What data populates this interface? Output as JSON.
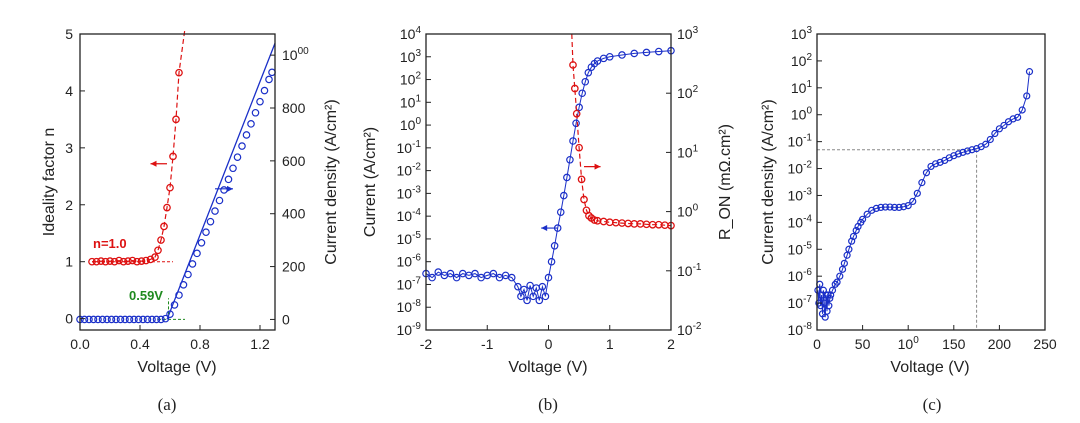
{
  "chart_data": [
    {
      "type": "scatter",
      "panel": "(a)",
      "xlabel": "Voltage (V)",
      "ylabel": "Ideality factor n",
      "y2label": "Current density (A/cm²)",
      "xlim": [
        0,
        1.3
      ],
      "ylim": [
        -0.2,
        5
      ],
      "y2lim": [
        -40,
        1080
      ],
      "xticks": [
        "0.0",
        "0.4",
        "0.8",
        "1.2"
      ],
      "yticks": [
        "0",
        "1",
        "2",
        "3",
        "4",
        "5"
      ],
      "y2ticks": [
        "0",
        "200",
        "400",
        "600",
        "800",
        "1000"
      ],
      "annotations": [
        "n=1.0",
        "0.59V"
      ],
      "colors": {
        "ideality": "#dd1111",
        "current": "#1a2fc8",
        "guide_red": "#dd1111",
        "guide_green": "#1f8a1f"
      },
      "series": [
        {
          "axis": "left",
          "color": "#dd1111",
          "x": [
            0.08,
            0.11,
            0.14,
            0.17,
            0.2,
            0.23,
            0.26,
            0.29,
            0.32,
            0.35,
            0.38,
            0.41,
            0.44,
            0.47,
            0.5,
            0.52,
            0.54,
            0.56,
            0.58,
            0.6,
            0.62,
            0.64,
            0.66
          ],
          "y": [
            1.0,
            1.0,
            1.01,
            1.0,
            1.01,
            1.0,
            1.02,
            1.0,
            1.01,
            1.02,
            1.0,
            1.01,
            1.02,
            1.04,
            1.08,
            1.2,
            1.38,
            1.62,
            1.95,
            2.3,
            2.85,
            3.5,
            4.32
          ]
        },
        {
          "axis": "right",
          "color": "#1a2fc8",
          "x": [
            0.0,
            0.03,
            0.06,
            0.09,
            0.12,
            0.15,
            0.18,
            0.21,
            0.24,
            0.27,
            0.3,
            0.33,
            0.36,
            0.39,
            0.42,
            0.45,
            0.48,
            0.51,
            0.54,
            0.57,
            0.6,
            0.63,
            0.66,
            0.69,
            0.72,
            0.75,
            0.78,
            0.81,
            0.84,
            0.87,
            0.9,
            0.93,
            0.96,
            0.99,
            1.02,
            1.05,
            1.08,
            1.11,
            1.14,
            1.17,
            1.2,
            1.23,
            1.26,
            1.28
          ],
          "y": [
            0,
            0,
            0,
            0,
            0,
            0,
            0,
            0,
            0,
            0,
            0,
            0,
            0,
            0,
            0,
            0,
            0,
            0,
            0,
            3,
            20,
            55,
            92,
            131,
            170,
            210,
            250,
            290,
            330,
            370,
            410,
            450,
            490,
            530,
            572,
            614,
            656,
            698,
            740,
            782,
            824,
            866,
            908,
            935
          ]
        }
      ]
    },
    {
      "type": "scatter",
      "panel": "(b)",
      "xlabel": "Voltage (V)",
      "ylabel": "Current (A/cm²)",
      "y2label": "R_ON (mΩ.cm²)",
      "yscale": "log",
      "y2scale": "log",
      "xlim": [
        -2,
        2
      ],
      "ylim": [
        1e-09,
        10000.0
      ],
      "y2lim": [
        0.01,
        1000
      ],
      "xticks": [
        "-2",
        "-1",
        "0",
        "1",
        "2"
      ],
      "yticks": [
        "10-9",
        "10-8",
        "10-7",
        "10-6",
        "10-5",
        "10-4",
        "10-3",
        "10-2",
        "10-1",
        "100",
        "101",
        "102",
        "103",
        "104"
      ],
      "y2ticks": [
        "10-2",
        "10-1",
        "100",
        "101",
        "102",
        "103"
      ],
      "colors": {
        "current": "#1a2fc8",
        "ron": "#dd1111"
      },
      "series": [
        {
          "axis": "left",
          "color": "#1a2fc8",
          "x": [
            -2.0,
            -1.9,
            -1.8,
            -1.7,
            -1.6,
            -1.5,
            -1.4,
            -1.3,
            -1.2,
            -1.1,
            -1.0,
            -0.9,
            -0.8,
            -0.7,
            -0.6,
            -0.5,
            -0.45,
            -0.4,
            -0.35,
            -0.3,
            -0.25,
            -0.2,
            -0.15,
            -0.1,
            -0.05,
            0.0,
            0.05,
            0.1,
            0.15,
            0.2,
            0.25,
            0.3,
            0.35,
            0.4,
            0.45,
            0.5,
            0.55,
            0.6,
            0.65,
            0.7,
            0.75,
            0.8,
            0.9,
            1.0,
            1.2,
            1.4,
            1.6,
            1.8,
            2.0
          ],
          "y": [
            3e-07,
            2e-07,
            3.5e-07,
            2.5e-07,
            3e-07,
            2e-07,
            3e-07,
            2.5e-07,
            3e-07,
            2e-07,
            2.5e-07,
            3e-07,
            2e-07,
            2.5e-07,
            2e-07,
            8e-08,
            3e-08,
            6e-08,
            2e-08,
            9e-08,
            3e-08,
            7e-08,
            2e-08,
            8e-08,
            3e-08,
            2e-07,
            1e-06,
            5e-06,
            3e-05,
            0.00015,
            0.0008,
            0.005,
            0.03,
            0.2,
            1.2,
            6,
            25,
            80,
            200,
            350,
            500,
            650,
            850,
            1000,
            1200,
            1400,
            1550,
            1700,
            1850
          ]
        },
        {
          "axis": "right",
          "color": "#dd1111",
          "x": [
            0.4,
            0.43,
            0.46,
            0.5,
            0.54,
            0.58,
            0.62,
            0.66,
            0.7,
            0.75,
            0.8,
            0.9,
            1.0,
            1.1,
            1.2,
            1.3,
            1.4,
            1.5,
            1.6,
            1.7,
            1.8,
            1.9,
            2.0
          ],
          "y": [
            300,
            120,
            45,
            12,
            3.5,
            1.6,
            1.05,
            0.85,
            0.78,
            0.72,
            0.7,
            0.68,
            0.66,
            0.65,
            0.64,
            0.63,
            0.62,
            0.62,
            0.61,
            0.6,
            0.6,
            0.59,
            0.58
          ]
        }
      ]
    },
    {
      "type": "scatter",
      "panel": "(c)",
      "xlabel": "Voltage (V)",
      "ylabel": "Current density (A/cm²)",
      "yscale": "log",
      "xlim": [
        0,
        250
      ],
      "ylim": [
        1e-08,
        1000.0
      ],
      "xticks": [
        "0",
        "50",
        "100",
        "150",
        "200",
        "250"
      ],
      "yticks": [
        "10-8",
        "10-7",
        "10-6",
        "10-5",
        "10-4",
        "10-3",
        "10-2",
        "10-1",
        "100",
        "101",
        "102",
        "103"
      ],
      "guide": {
        "x": 175,
        "y": 0.05
      },
      "colors": {
        "current": "#1a2fc8",
        "guide": "#888888"
      },
      "series": [
        {
          "axis": "left",
          "color": "#1a2fc8",
          "x": [
            1,
            2,
            3,
            4,
            5,
            6,
            7,
            8,
            9,
            10,
            11,
            12,
            13,
            14,
            15,
            17,
            20,
            22,
            25,
            28,
            30,
            33,
            35,
            38,
            40,
            43,
            45,
            48,
            50,
            55,
            60,
            65,
            70,
            75,
            80,
            85,
            90,
            95,
            100,
            105,
            110,
            115,
            120,
            125,
            130,
            135,
            140,
            145,
            150,
            155,
            160,
            165,
            170,
            175,
            180,
            185,
            190,
            195,
            200,
            205,
            210,
            215,
            220,
            225,
            230,
            233
          ],
          "y": [
            3e-07,
            1e-07,
            5e-07,
            8e-08,
            2e-07,
            4e-08,
            3e-07,
            1e-07,
            3e-08,
            2e-07,
            5e-08,
            2e-07,
            8e-08,
            1.5e-07,
            2e-07,
            3e-07,
            5e-07,
            6e-07,
            1e-06,
            1.8e-06,
            3e-06,
            6e-06,
            1e-05,
            2e-05,
            3e-05,
            5e-05,
            7e-05,
            0.0001,
            0.00013,
            0.0002,
            0.00028,
            0.00033,
            0.00036,
            0.00037,
            0.00037,
            0.00036,
            0.00036,
            0.00038,
            0.00042,
            0.0006,
            0.0012,
            0.003,
            0.007,
            0.012,
            0.015,
            0.017,
            0.02,
            0.025,
            0.03,
            0.035,
            0.04,
            0.045,
            0.05,
            0.055,
            0.065,
            0.08,
            0.12,
            0.2,
            0.3,
            0.4,
            0.55,
            0.7,
            0.8,
            1.5,
            5,
            40
          ]
        }
      ]
    }
  ]
}
